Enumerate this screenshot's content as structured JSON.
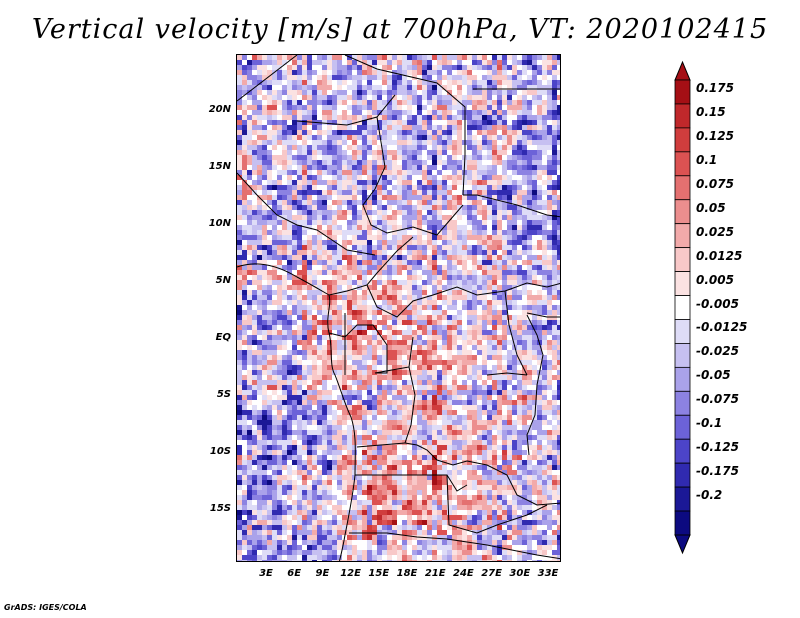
{
  "title": "Vertical velocity [m/s] at 700hPa, VT: 2020102415",
  "credit": "GrADS: IGES/COLA",
  "map": {
    "lat_ticks": [
      "20N",
      "15N",
      "10N",
      "5N",
      "EQ",
      "5S",
      "10S",
      "15S"
    ],
    "lon_ticks": [
      "3E",
      "6E",
      "9E",
      "12E",
      "15E",
      "18E",
      "21E",
      "24E",
      "27E",
      "30E",
      "33E"
    ],
    "lat_range": [
      -20,
      25
    ],
    "lon_range": [
      0,
      35
    ]
  },
  "colorbar": {
    "labels": [
      "0.175",
      "0.15",
      "0.125",
      "0.1",
      "0.075",
      "0.05",
      "0.025",
      "0.0125",
      "0.005",
      "-0.005",
      "-0.0125",
      "-0.025",
      "-0.05",
      "-0.075",
      "-0.1",
      "-0.125",
      "-0.175",
      "-0.2"
    ],
    "colors": [
      "#a50f15",
      "#c0282b",
      "#d03d3d",
      "#dc5252",
      "#e47070",
      "#ec8e8e",
      "#f2aaaa",
      "#f8c8c8",
      "#fbe2e2",
      "#ffffff",
      "#dedcf7",
      "#c6c0f1",
      "#aaa2ea",
      "#8c82e2",
      "#6c62d8",
      "#4c44c8",
      "#302ab0",
      "#1b1896",
      "#0c0a80"
    ]
  }
}
